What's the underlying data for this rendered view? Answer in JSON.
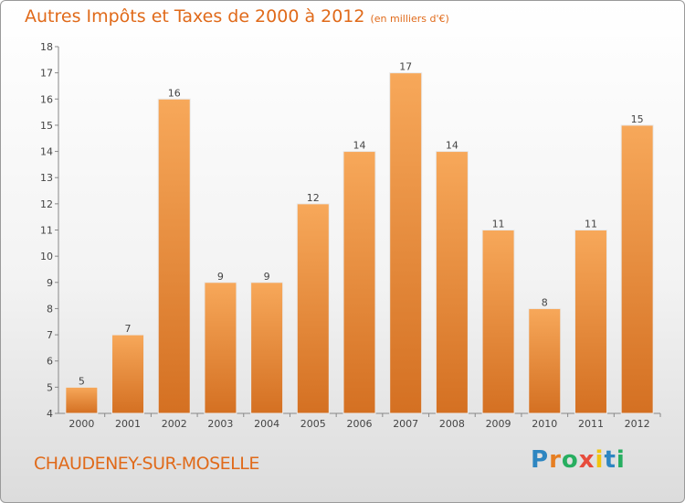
{
  "chart_data": {
    "type": "bar",
    "title": "Autres Impôts et Taxes de 2000 à 2012",
    "subtitle": "(en milliers d'€)",
    "categories": [
      "2000",
      "2001",
      "2002",
      "2003",
      "2004",
      "2005",
      "2006",
      "2007",
      "2008",
      "2009",
      "2010",
      "2011",
      "2012"
    ],
    "values": [
      5,
      7,
      16,
      9,
      9,
      12,
      14,
      17,
      14,
      11,
      8,
      11,
      15
    ],
    "ylim": [
      4,
      18
    ],
    "yticks": [
      4,
      5,
      6,
      7,
      8,
      9,
      10,
      11,
      12,
      13,
      14,
      15,
      16,
      17,
      18
    ],
    "grid": false,
    "colors": {
      "bar_light": "#f7a85a",
      "bar_dark": "#d47022",
      "accent": "#e06a1a"
    }
  },
  "footer": {
    "place": "CHAUDENEY-SUR-MOSELLE",
    "logo_letters": [
      "P",
      "r",
      "o",
      "x",
      "i",
      "t",
      "i"
    ],
    "logo_colors": [
      "#2e86c1",
      "#e67e22",
      "#27ae60",
      "#e74c3c",
      "#f1c40f",
      "#2e86c1",
      "#27ae60"
    ]
  }
}
